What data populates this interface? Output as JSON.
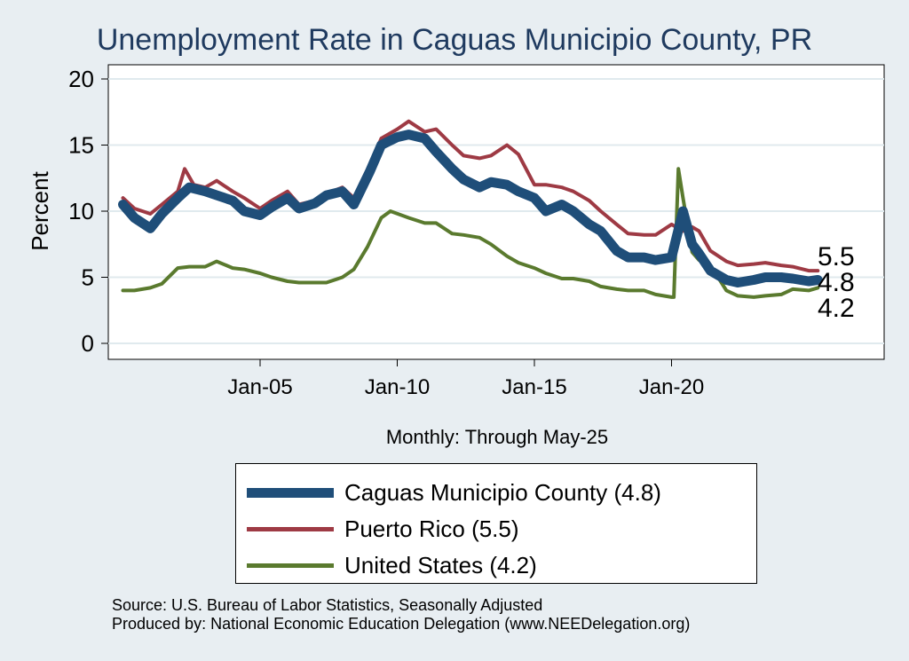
{
  "chart_data": {
    "type": "line",
    "title": "Unemployment Rate in Caguas Municipio  County, PR",
    "ylabel": "Percent",
    "xcaption": "Monthly: Through May-25",
    "ylim": [
      0,
      20
    ],
    "yticks": [
      "0",
      "5",
      "10",
      "15",
      "20"
    ],
    "xticks": [
      "Jan-05",
      "Jan-10",
      "Jan-15",
      "Jan-20"
    ],
    "grid": true,
    "legend_position": "bottom",
    "series": [
      {
        "name": "Caguas Municipio  County (4.8)",
        "color": "#1f4e79",
        "end_label": "4.8",
        "points": [
          [
            "2000-01",
            10.5
          ],
          [
            "2000-06",
            9.5
          ],
          [
            "2001-01",
            8.7
          ],
          [
            "2001-06",
            9.8
          ],
          [
            "2002-01",
            11.0
          ],
          [
            "2002-06",
            11.8
          ],
          [
            "2003-01",
            11.5
          ],
          [
            "2003-06",
            11.2
          ],
          [
            "2004-01",
            10.8
          ],
          [
            "2004-06",
            10.0
          ],
          [
            "2005-01",
            9.7
          ],
          [
            "2005-06",
            10.3
          ],
          [
            "2006-01",
            11.0
          ],
          [
            "2006-06",
            10.2
          ],
          [
            "2007-01",
            10.6
          ],
          [
            "2007-06",
            11.2
          ],
          [
            "2008-01",
            11.5
          ],
          [
            "2008-06",
            10.5
          ],
          [
            "2009-01",
            13.0
          ],
          [
            "2009-06",
            15.0
          ],
          [
            "2010-01",
            15.6
          ],
          [
            "2010-06",
            15.8
          ],
          [
            "2011-01",
            15.5
          ],
          [
            "2011-06",
            14.5
          ],
          [
            "2012-01",
            13.2
          ],
          [
            "2012-06",
            12.4
          ],
          [
            "2013-01",
            11.8
          ],
          [
            "2013-06",
            12.2
          ],
          [
            "2014-01",
            12.0
          ],
          [
            "2014-06",
            11.5
          ],
          [
            "2015-01",
            11.0
          ],
          [
            "2015-06",
            10.0
          ],
          [
            "2016-01",
            10.5
          ],
          [
            "2016-06",
            10.0
          ],
          [
            "2017-01",
            9.0
          ],
          [
            "2017-06",
            8.5
          ],
          [
            "2018-01",
            7.0
          ],
          [
            "2018-06",
            6.5
          ],
          [
            "2019-01",
            6.5
          ],
          [
            "2019-06",
            6.3
          ],
          [
            "2020-01",
            6.5
          ],
          [
            "2020-06",
            10.0
          ],
          [
            "2020-10",
            7.5
          ],
          [
            "2021-01",
            6.8
          ],
          [
            "2021-06",
            5.5
          ],
          [
            "2022-01",
            4.8
          ],
          [
            "2022-06",
            4.6
          ],
          [
            "2023-01",
            4.8
          ],
          [
            "2023-06",
            5.0
          ],
          [
            "2024-01",
            5.0
          ],
          [
            "2024-06",
            4.9
          ],
          [
            "2025-01",
            4.7
          ],
          [
            "2025-05",
            4.8
          ]
        ]
      },
      {
        "name": "Puerto Rico (5.5)",
        "color": "#9e3a44",
        "end_label": "5.5",
        "points": [
          [
            "2000-01",
            11.0
          ],
          [
            "2000-06",
            10.2
          ],
          [
            "2001-01",
            9.8
          ],
          [
            "2001-06",
            10.5
          ],
          [
            "2002-01",
            11.5
          ],
          [
            "2002-04",
            13.2
          ],
          [
            "2002-08",
            12.0
          ],
          [
            "2003-01",
            11.8
          ],
          [
            "2003-06",
            12.3
          ],
          [
            "2004-01",
            11.5
          ],
          [
            "2004-06",
            11.0
          ],
          [
            "2005-01",
            10.2
          ],
          [
            "2005-06",
            10.8
          ],
          [
            "2006-01",
            11.5
          ],
          [
            "2006-06",
            10.5
          ],
          [
            "2007-01",
            10.8
          ],
          [
            "2007-06",
            11.3
          ],
          [
            "2008-01",
            11.8
          ],
          [
            "2008-06",
            11.0
          ],
          [
            "2009-01",
            13.5
          ],
          [
            "2009-06",
            15.5
          ],
          [
            "2010-01",
            16.2
          ],
          [
            "2010-06",
            16.8
          ],
          [
            "2011-01",
            16.0
          ],
          [
            "2011-06",
            16.2
          ],
          [
            "2012-01",
            15.0
          ],
          [
            "2012-06",
            14.2
          ],
          [
            "2013-01",
            14.0
          ],
          [
            "2013-06",
            14.2
          ],
          [
            "2014-01",
            15.0
          ],
          [
            "2014-06",
            14.3
          ],
          [
            "2015-01",
            12.0
          ],
          [
            "2015-06",
            12.0
          ],
          [
            "2016-01",
            11.8
          ],
          [
            "2016-06",
            11.5
          ],
          [
            "2017-01",
            10.8
          ],
          [
            "2017-06",
            10.0
          ],
          [
            "2018-01",
            9.0
          ],
          [
            "2018-06",
            8.3
          ],
          [
            "2019-01",
            8.2
          ],
          [
            "2019-06",
            8.2
          ],
          [
            "2020-01",
            9.0
          ],
          [
            "2020-06",
            8.5
          ],
          [
            "2020-10",
            8.8
          ],
          [
            "2021-01",
            8.5
          ],
          [
            "2021-06",
            7.0
          ],
          [
            "2022-01",
            6.2
          ],
          [
            "2022-06",
            5.9
          ],
          [
            "2023-01",
            6.0
          ],
          [
            "2023-06",
            6.1
          ],
          [
            "2024-01",
            5.9
          ],
          [
            "2024-06",
            5.8
          ],
          [
            "2025-01",
            5.5
          ],
          [
            "2025-05",
            5.5
          ]
        ]
      },
      {
        "name": "United States (4.2)",
        "color": "#5a7a2e",
        "end_label": "4.2",
        "points": [
          [
            "2000-01",
            4.0
          ],
          [
            "2000-06",
            4.0
          ],
          [
            "2001-01",
            4.2
          ],
          [
            "2001-06",
            4.5
          ],
          [
            "2002-01",
            5.7
          ],
          [
            "2002-06",
            5.8
          ],
          [
            "2003-01",
            5.8
          ],
          [
            "2003-06",
            6.2
          ],
          [
            "2004-01",
            5.7
          ],
          [
            "2004-06",
            5.6
          ],
          [
            "2005-01",
            5.3
          ],
          [
            "2005-06",
            5.0
          ],
          [
            "2006-01",
            4.7
          ],
          [
            "2006-06",
            4.6
          ],
          [
            "2007-01",
            4.6
          ],
          [
            "2007-06",
            4.6
          ],
          [
            "2008-01",
            5.0
          ],
          [
            "2008-06",
            5.6
          ],
          [
            "2008-12",
            7.3
          ],
          [
            "2009-06",
            9.5
          ],
          [
            "2009-10",
            10.0
          ],
          [
            "2010-06",
            9.5
          ],
          [
            "2011-01",
            9.1
          ],
          [
            "2011-06",
            9.1
          ],
          [
            "2012-01",
            8.3
          ],
          [
            "2012-06",
            8.2
          ],
          [
            "2013-01",
            8.0
          ],
          [
            "2013-06",
            7.5
          ],
          [
            "2014-01",
            6.6
          ],
          [
            "2014-06",
            6.1
          ],
          [
            "2015-01",
            5.7
          ],
          [
            "2015-06",
            5.3
          ],
          [
            "2016-01",
            4.9
          ],
          [
            "2016-06",
            4.9
          ],
          [
            "2017-01",
            4.7
          ],
          [
            "2017-06",
            4.3
          ],
          [
            "2018-01",
            4.1
          ],
          [
            "2018-06",
            4.0
          ],
          [
            "2019-01",
            4.0
          ],
          [
            "2019-06",
            3.7
          ],
          [
            "2020-01",
            3.5
          ],
          [
            "2020-02",
            3.5
          ],
          [
            "2020-04",
            13.2
          ],
          [
            "2020-06",
            11.0
          ],
          [
            "2020-10",
            6.9
          ],
          [
            "2021-01",
            6.3
          ],
          [
            "2021-06",
            5.9
          ],
          [
            "2022-01",
            4.0
          ],
          [
            "2022-06",
            3.6
          ],
          [
            "2023-01",
            3.5
          ],
          [
            "2023-06",
            3.6
          ],
          [
            "2024-01",
            3.7
          ],
          [
            "2024-06",
            4.1
          ],
          [
            "2025-01",
            4.0
          ],
          [
            "2025-05",
            4.2
          ]
        ]
      }
    ]
  },
  "footer": {
    "source": "Source: U.S. Bureau of Labor Statistics, Seasonally Adjusted",
    "produced": "Produced by: National Economic Education Delegation (www.NEEDelegation.org)"
  }
}
